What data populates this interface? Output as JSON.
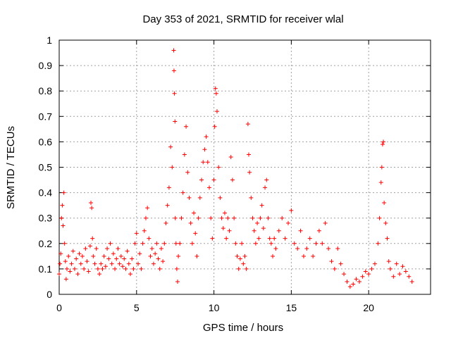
{
  "chart_data": {
    "type": "scatter",
    "title": "Day 353 of 2021, SRMTID for receiver wlal",
    "xlabel": "GPS time / hours",
    "ylabel": "SRMTID / TECUs",
    "xlim": [
      0,
      24
    ],
    "ylim": [
      0,
      1
    ],
    "x_ticks": [
      "0",
      "5",
      "10",
      "15",
      "20"
    ],
    "y_ticks": [
      "0",
      "0.1",
      "0.2",
      "0.3",
      "0.4",
      "0.5",
      "0.6",
      "0.7",
      "0.8",
      "0.9",
      "1"
    ],
    "grid": true,
    "series": [
      {
        "name": "SRMTID",
        "color": "#ff0000",
        "marker": "plus",
        "points": [
          [
            0.0,
            0.08
          ],
          [
            0.05,
            0.12
          ],
          [
            0.1,
            0.16
          ],
          [
            0.15,
            0.3
          ],
          [
            0.2,
            0.35
          ],
          [
            0.25,
            0.27
          ],
          [
            0.3,
            0.4
          ],
          [
            0.35,
            0.2
          ],
          [
            0.4,
            0.13
          ],
          [
            0.45,
            0.06
          ],
          [
            0.5,
            0.1
          ],
          [
            0.6,
            0.15
          ],
          [
            0.7,
            0.09
          ],
          [
            0.8,
            0.12
          ],
          [
            0.9,
            0.17
          ],
          [
            1.0,
            0.1
          ],
          [
            1.1,
            0.14
          ],
          [
            1.2,
            0.08
          ],
          [
            1.3,
            0.16
          ],
          [
            1.4,
            0.12
          ],
          [
            1.5,
            0.15
          ],
          [
            1.6,
            0.1
          ],
          [
            1.7,
            0.18
          ],
          [
            1.8,
            0.13
          ],
          [
            1.9,
            0.09
          ],
          [
            2.0,
            0.19
          ],
          [
            2.05,
            0.36
          ],
          [
            2.1,
            0.34
          ],
          [
            2.15,
            0.22
          ],
          [
            2.2,
            0.15
          ],
          [
            2.3,
            0.12
          ],
          [
            2.4,
            0.18
          ],
          [
            2.5,
            0.1
          ],
          [
            2.6,
            0.08
          ],
          [
            2.7,
            0.12
          ],
          [
            2.8,
            0.1
          ],
          [
            2.9,
            0.15
          ],
          [
            3.0,
            0.11
          ],
          [
            3.1,
            0.18
          ],
          [
            3.2,
            0.14
          ],
          [
            3.3,
            0.2
          ],
          [
            3.4,
            0.12
          ],
          [
            3.5,
            0.16
          ],
          [
            3.6,
            0.1
          ],
          [
            3.7,
            0.14
          ],
          [
            3.8,
            0.18
          ],
          [
            3.9,
            0.12
          ],
          [
            4.0,
            0.15
          ],
          [
            4.1,
            0.11
          ],
          [
            4.2,
            0.14
          ],
          [
            4.3,
            0.1
          ],
          [
            4.4,
            0.17
          ],
          [
            4.5,
            0.12
          ],
          [
            4.6,
            0.08
          ],
          [
            4.7,
            0.14
          ],
          [
            4.8,
            0.1
          ],
          [
            4.9,
            0.2
          ],
          [
            5.0,
            0.24
          ],
          [
            5.1,
            0.12
          ],
          [
            5.2,
            0.16
          ],
          [
            5.3,
            0.1
          ],
          [
            5.4,
            0.2
          ],
          [
            5.5,
            0.25
          ],
          [
            5.6,
            0.3
          ],
          [
            5.7,
            0.34
          ],
          [
            5.8,
            0.22
          ],
          [
            5.9,
            0.15
          ],
          [
            6.0,
            0.18
          ],
          [
            6.1,
            0.12
          ],
          [
            6.2,
            0.16
          ],
          [
            6.3,
            0.2
          ],
          [
            6.4,
            0.14
          ],
          [
            6.5,
            0.1
          ],
          [
            6.6,
            0.18
          ],
          [
            6.7,
            0.13
          ],
          [
            6.8,
            0.2
          ],
          [
            6.9,
            0.28
          ],
          [
            7.0,
            0.35
          ],
          [
            7.1,
            0.42
          ],
          [
            7.2,
            0.58
          ],
          [
            7.3,
            0.5
          ],
          [
            7.4,
            0.96
          ],
          [
            7.42,
            0.88
          ],
          [
            7.45,
            0.79
          ],
          [
            7.48,
            0.68
          ],
          [
            7.5,
            0.3
          ],
          [
            7.55,
            0.2
          ],
          [
            7.6,
            0.1
          ],
          [
            7.65,
            0.05
          ],
          [
            7.7,
            0.15
          ],
          [
            7.8,
            0.2
          ],
          [
            7.9,
            0.3
          ],
          [
            8.0,
            0.4
          ],
          [
            8.1,
            0.55
          ],
          [
            8.2,
            0.66
          ],
          [
            8.3,
            0.48
          ],
          [
            8.4,
            0.38
          ],
          [
            8.5,
            0.28
          ],
          [
            8.6,
            0.2
          ],
          [
            8.7,
            0.32
          ],
          [
            8.8,
            0.24
          ],
          [
            8.9,
            0.15
          ],
          [
            9.0,
            0.3
          ],
          [
            9.1,
            0.38
          ],
          [
            9.2,
            0.45
          ],
          [
            9.3,
            0.52
          ],
          [
            9.4,
            0.57
          ],
          [
            9.5,
            0.62
          ],
          [
            9.6,
            0.52
          ],
          [
            9.7,
            0.42
          ],
          [
            9.8,
            0.3
          ],
          [
            9.9,
            0.22
          ],
          [
            10.0,
            0.45
          ],
          [
            10.05,
            0.66
          ],
          [
            10.1,
            0.81
          ],
          [
            10.15,
            0.79
          ],
          [
            10.2,
            0.72
          ],
          [
            10.3,
            0.5
          ],
          [
            10.4,
            0.38
          ],
          [
            10.5,
            0.3
          ],
          [
            10.6,
            0.26
          ],
          [
            10.7,
            0.32
          ],
          [
            10.8,
            0.22
          ],
          [
            10.9,
            0.3
          ],
          [
            11.0,
            0.25
          ],
          [
            11.1,
            0.54
          ],
          [
            11.2,
            0.45
          ],
          [
            11.3,
            0.3
          ],
          [
            11.4,
            0.2
          ],
          [
            11.5,
            0.15
          ],
          [
            11.6,
            0.1
          ],
          [
            11.7,
            0.14
          ],
          [
            11.8,
            0.2
          ],
          [
            11.9,
            0.12
          ],
          [
            12.0,
            0.15
          ],
          [
            12.1,
            0.1
          ],
          [
            12.2,
            0.67
          ],
          [
            12.25,
            0.55
          ],
          [
            12.3,
            0.48
          ],
          [
            12.4,
            0.38
          ],
          [
            12.5,
            0.3
          ],
          [
            12.6,
            0.25
          ],
          [
            12.7,
            0.2
          ],
          [
            12.8,
            0.28
          ],
          [
            12.9,
            0.22
          ],
          [
            13.0,
            0.3
          ],
          [
            13.1,
            0.35
          ],
          [
            13.2,
            0.26
          ],
          [
            13.3,
            0.42
          ],
          [
            13.4,
            0.45
          ],
          [
            13.5,
            0.3
          ],
          [
            13.6,
            0.22
          ],
          [
            13.7,
            0.2
          ],
          [
            13.8,
            0.15
          ],
          [
            13.9,
            0.22
          ],
          [
            14.0,
            0.18
          ],
          [
            14.2,
            0.25
          ],
          [
            14.4,
            0.3
          ],
          [
            14.6,
            0.22
          ],
          [
            14.8,
            0.28
          ],
          [
            15.0,
            0.33
          ],
          [
            15.2,
            0.2
          ],
          [
            15.4,
            0.18
          ],
          [
            15.6,
            0.25
          ],
          [
            15.8,
            0.15
          ],
          [
            16.0,
            0.18
          ],
          [
            16.2,
            0.22
          ],
          [
            16.4,
            0.15
          ],
          [
            16.6,
            0.2
          ],
          [
            16.8,
            0.25
          ],
          [
            17.0,
            0.2
          ],
          [
            17.2,
            0.28
          ],
          [
            17.4,
            0.18
          ],
          [
            17.6,
            0.13
          ],
          [
            17.8,
            0.1
          ],
          [
            18.0,
            0.18
          ],
          [
            18.2,
            0.12
          ],
          [
            18.4,
            0.08
          ],
          [
            18.6,
            0.05
          ],
          [
            18.8,
            0.03
          ],
          [
            19.0,
            0.04
          ],
          [
            19.2,
            0.06
          ],
          [
            19.4,
            0.05
          ],
          [
            19.6,
            0.07
          ],
          [
            19.8,
            0.09
          ],
          [
            20.0,
            0.08
          ],
          [
            20.2,
            0.1
          ],
          [
            20.4,
            0.12
          ],
          [
            20.6,
            0.2
          ],
          [
            20.7,
            0.3
          ],
          [
            20.8,
            0.44
          ],
          [
            20.85,
            0.5
          ],
          [
            20.9,
            0.59
          ],
          [
            20.95,
            0.6
          ],
          [
            21.0,
            0.36
          ],
          [
            21.1,
            0.28
          ],
          [
            21.2,
            0.22
          ],
          [
            21.3,
            0.13
          ],
          [
            21.4,
            0.1
          ],
          [
            21.6,
            0.07
          ],
          [
            21.8,
            0.12
          ],
          [
            22.0,
            0.08
          ],
          [
            22.2,
            0.11
          ],
          [
            22.4,
            0.09
          ],
          [
            22.6,
            0.07
          ],
          [
            22.8,
            0.05
          ]
        ]
      }
    ]
  }
}
